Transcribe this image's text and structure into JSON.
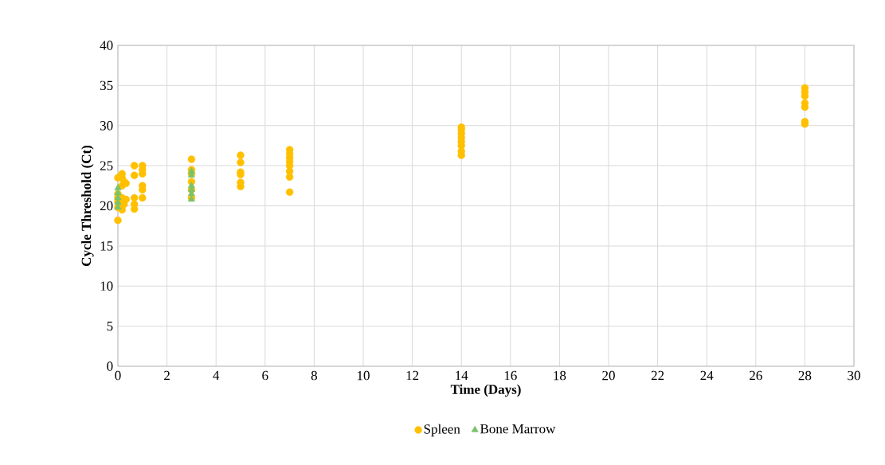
{
  "chart_data": {
    "type": "scatter",
    "xlabel": "Time (Days)",
    "ylabel": "Cycle Threshold (Ct)",
    "xlim": [
      0,
      30
    ],
    "xticks": [
      0,
      2,
      4,
      6,
      8,
      10,
      12,
      14,
      16,
      18,
      20,
      22,
      24,
      26,
      28,
      30
    ],
    "ylim": [
      0,
      40
    ],
    "yticks": [
      0,
      5,
      10,
      15,
      20,
      25,
      30,
      35,
      40
    ],
    "grid": true,
    "legend": "bottom",
    "series": [
      {
        "name": "Spleen",
        "color": "#ffc000",
        "marker": "circle",
        "x": [
          0,
          0,
          0,
          0,
          0,
          0,
          0.17,
          0.17,
          0.17,
          0.17,
          0.17,
          0.25,
          0.25,
          0.33,
          0.33,
          0.67,
          0.67,
          0.67,
          0.67,
          0.67,
          1,
          1,
          1,
          1,
          1,
          1,
          3,
          3,
          3,
          3,
          3,
          3,
          5,
          5,
          5,
          5,
          5,
          5,
          7,
          7,
          7,
          7,
          7,
          7,
          7,
          7,
          14,
          14,
          14,
          14,
          14,
          14,
          14,
          14,
          28,
          28,
          28,
          28,
          28,
          28,
          28
        ],
        "values": [
          18.2,
          19.8,
          20.5,
          21.0,
          21.5,
          23.5,
          19.5,
          21,
          22.5,
          23.5,
          24,
          20.2,
          23,
          22.8,
          20.8,
          19.6,
          20.2,
          21,
          23.8,
          25,
          21,
          22,
          22.5,
          24,
          24.5,
          25,
          21,
          22,
          23,
          24,
          24.5,
          25.8,
          22.4,
          22.9,
          23.9,
          24.2,
          25.4,
          26.3,
          21.7,
          23.6,
          24.3,
          25,
          25.5,
          26,
          26.5,
          27,
          26.3,
          26.8,
          27.5,
          28,
          28.5,
          29,
          29.5,
          29.8,
          30.2,
          30.5,
          32.3,
          32.8,
          33.7,
          34.2,
          34.7
        ]
      },
      {
        "name": "Bone Marrow",
        "color": "#7ac36a",
        "marker": "triangle",
        "x": [
          0,
          0,
          0,
          0,
          0,
          3,
          3,
          3,
          3,
          3,
          3
        ],
        "values": [
          19.8,
          20.4,
          21,
          21.6,
          22.2,
          20.8,
          21.5,
          22,
          22.5,
          23.8,
          24.3
        ]
      }
    ]
  }
}
